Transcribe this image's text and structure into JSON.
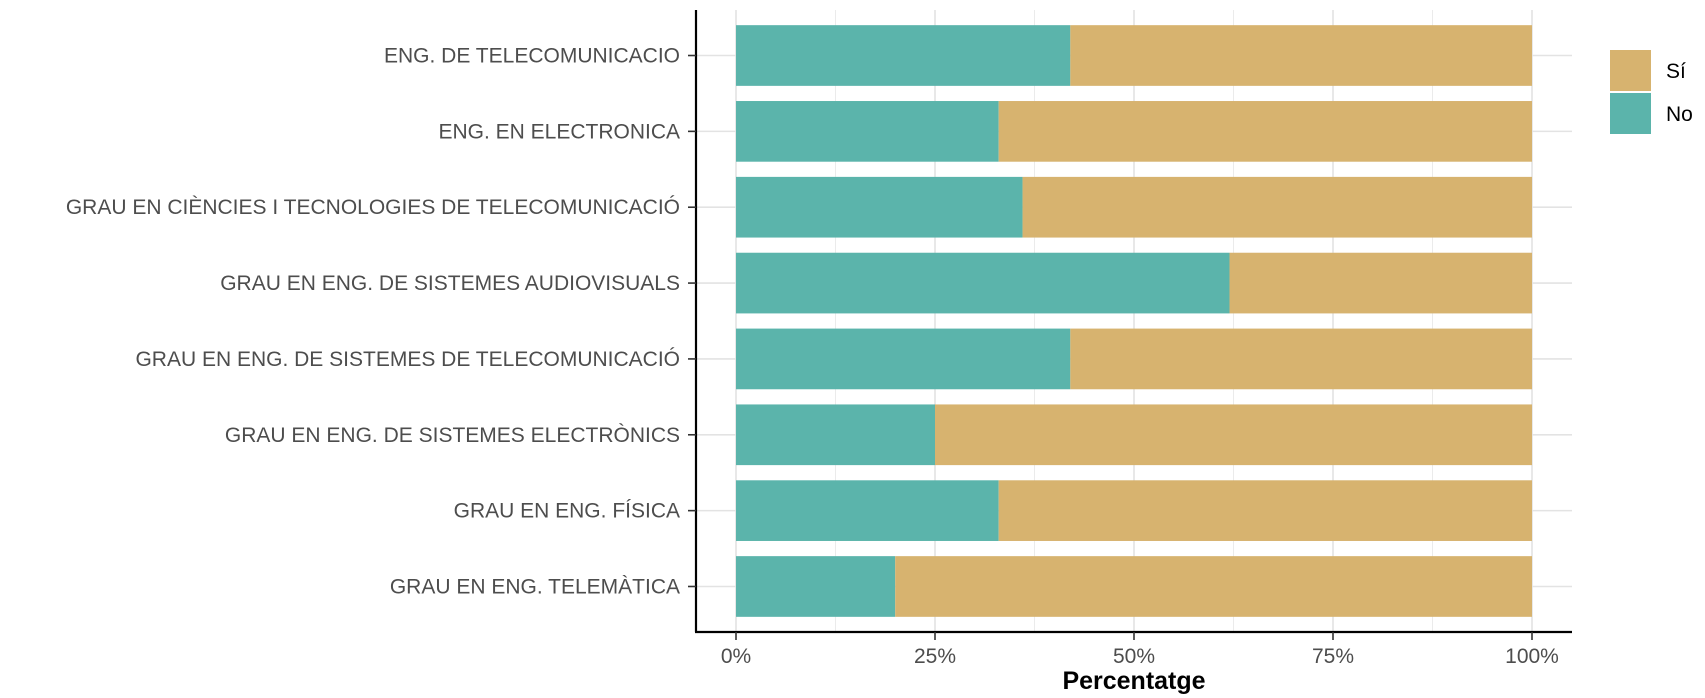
{
  "chart_data": {
    "type": "bar",
    "orientation": "horizontal",
    "stacked": true,
    "categories": [
      "ENG. DE TELECOMUNICACIO",
      "ENG. EN ELECTRONICA",
      "GRAU EN CIÈNCIES I TECNOLOGIES DE TELECOMUNICACIÓ",
      "GRAU EN ENG. DE SISTEMES AUDIOVISUALS",
      "GRAU EN ENG. DE SISTEMES DE TELECOMUNICACIÓ",
      "GRAU EN ENG. DE SISTEMES ELECTRÒNICS",
      "GRAU EN ENG. FÍSICA",
      "GRAU EN ENG. TELEMÀTICA"
    ],
    "series": [
      {
        "name": "No",
        "color": "#5bb4ab",
        "values": [
          42,
          33,
          36,
          62,
          42,
          25,
          33,
          20
        ]
      },
      {
        "name": "Sí",
        "color": "#d7b36f",
        "values": [
          58,
          67,
          64,
          38,
          58,
          75,
          67,
          80
        ]
      }
    ],
    "legend_order": [
      "Sí",
      "No"
    ],
    "xlabel": "Percentatge",
    "ylabel": "",
    "xlim": [
      0,
      100
    ],
    "x_ticks": [
      0,
      25,
      50,
      75,
      100
    ],
    "x_tick_labels": [
      "0%",
      "25%",
      "50%",
      "75%",
      "100%"
    ],
    "grid": true,
    "legend_position": "right"
  }
}
